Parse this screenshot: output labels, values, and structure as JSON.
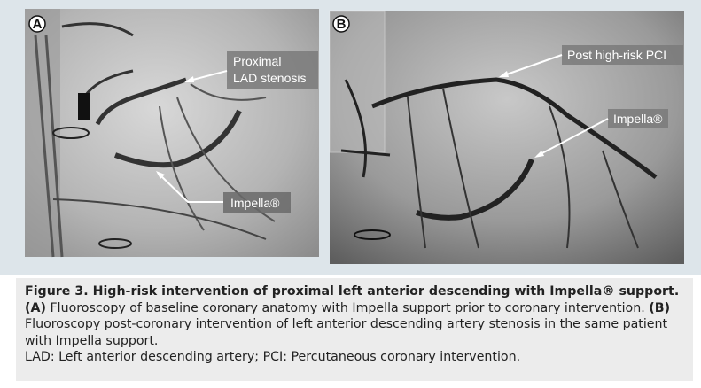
{
  "panels": [
    {
      "label": "A",
      "annotations": [
        {
          "lines": [
            "Proximal",
            "LAD stenosis"
          ]
        },
        {
          "lines": [
            "Impella®"
          ]
        }
      ]
    },
    {
      "label": "B",
      "annotations": [
        {
          "lines": [
            "Post high-risk PCI"
          ]
        },
        {
          "lines": [
            "Impella®"
          ]
        }
      ]
    }
  ],
  "caption": {
    "title": "Figure 3. High-risk intervention of proximal left anterior descending with Impella® support.",
    "parts": [
      {
        "label": "(A)",
        "text": "Fluoroscopy of baseline coronary anatomy with Impella support prior to coronary intervention."
      },
      {
        "label": "(B)",
        "text": "Fluoroscopy post-coronary intervention of left anterior descending artery stenosis in the same patient with Impella support."
      }
    ],
    "abbreviations": "LAD: Left anterior descending artery; PCI: Percutaneous coronary intervention."
  }
}
